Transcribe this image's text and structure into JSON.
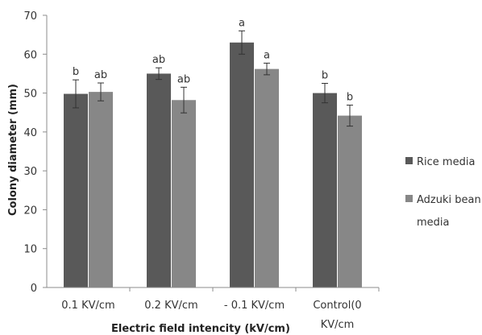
{
  "chart_data": {
    "type": "bar",
    "xlabel": "Electric field intencity (kV/cm)",
    "ylabel": "Colony diameter (mm)",
    "ylim": [
      0,
      70
    ],
    "yticks": [
      0,
      10,
      20,
      30,
      40,
      50,
      60,
      70
    ],
    "grid": false,
    "legend_position": "right",
    "categories": [
      [
        "0.1 KV/cm"
      ],
      [
        "0.2 KV/cm"
      ],
      [
        "- 0.1 KV/cm"
      ],
      [
        "Control(0",
        "KV/cm"
      ]
    ],
    "series": [
      {
        "name": "Rice media",
        "legend_lines": [
          "Rice media"
        ],
        "color": "#595959",
        "values": [
          49.8,
          55.0,
          63.0,
          50.0
        ],
        "errors": [
          3.6,
          1.5,
          3.0,
          2.5
        ],
        "labels": [
          "b",
          "ab",
          "a",
          "b"
        ]
      },
      {
        "name": "Adzuki bean media",
        "legend_lines": [
          "Adzuki bean",
          "media"
        ],
        "color": "#878787",
        "values": [
          50.3,
          48.2,
          56.2,
          44.2
        ],
        "errors": [
          2.3,
          3.3,
          1.5,
          2.7
        ],
        "labels": [
          "ab",
          "ab",
          "a",
          "b"
        ]
      }
    ]
  }
}
